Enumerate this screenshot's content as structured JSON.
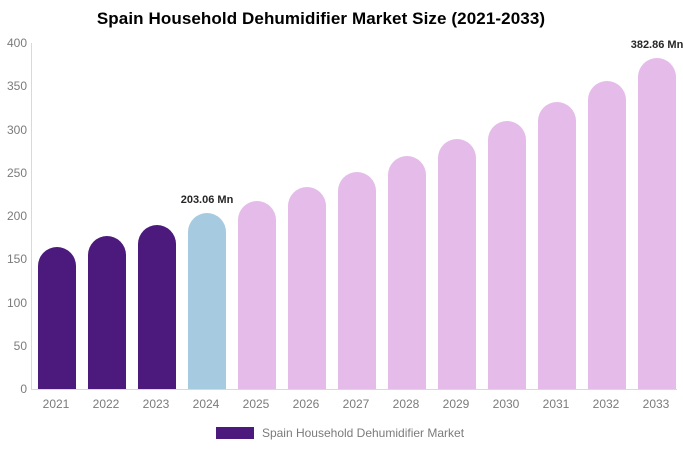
{
  "title": "Spain Household Dehumidifier Market Size (2021-2033)",
  "legend": {
    "label": "Spain Household Dehumidifier Market",
    "swatch_color": "#4c1a7c"
  },
  "colors": {
    "historical_bar": "#4c1a7c",
    "base_year_bar": "#a6cbe0",
    "forecast_bar": "#e4bbe9",
    "axis_line": "#d9d9d9",
    "tick_label": "#7b7b7b",
    "annotation_text": "#262626",
    "title_text": "#000000",
    "background": "#ffffff"
  },
  "chart_data": {
    "type": "bar",
    "title": "Spain Household Dehumidifier Market Size (2021-2033)",
    "categories": [
      "2021",
      "2022",
      "2023",
      "2024",
      "2025",
      "2026",
      "2027",
      "2028",
      "2029",
      "2030",
      "2031",
      "2032",
      "2033"
    ],
    "values": [
      164.4,
      176.4,
      189.3,
      203.06,
      217.9,
      233.8,
      250.8,
      269.1,
      288.7,
      309.8,
      332.3,
      356.6,
      382.86
    ],
    "bar_colors": [
      "#4c1a7c",
      "#4c1a7c",
      "#4c1a7c",
      "#a6cbe0",
      "#e4bbe9",
      "#e4bbe9",
      "#e4bbe9",
      "#e4bbe9",
      "#e4bbe9",
      "#e4bbe9",
      "#e4bbe9",
      "#e4bbe9",
      "#e4bbe9"
    ],
    "xlabel": "",
    "ylabel": "",
    "ylim": [
      0,
      400
    ],
    "yticks": [
      0,
      50,
      100,
      150,
      200,
      250,
      300,
      350,
      400
    ],
    "grid": false,
    "legend_position": "bottom-center",
    "legend_entries": [
      "Spain Household Dehumidifier Market"
    ],
    "annotations": [
      {
        "text": "203.06 Mn",
        "category": "2024"
      },
      {
        "text": "382.86 Mn",
        "category": "2033"
      }
    ]
  }
}
